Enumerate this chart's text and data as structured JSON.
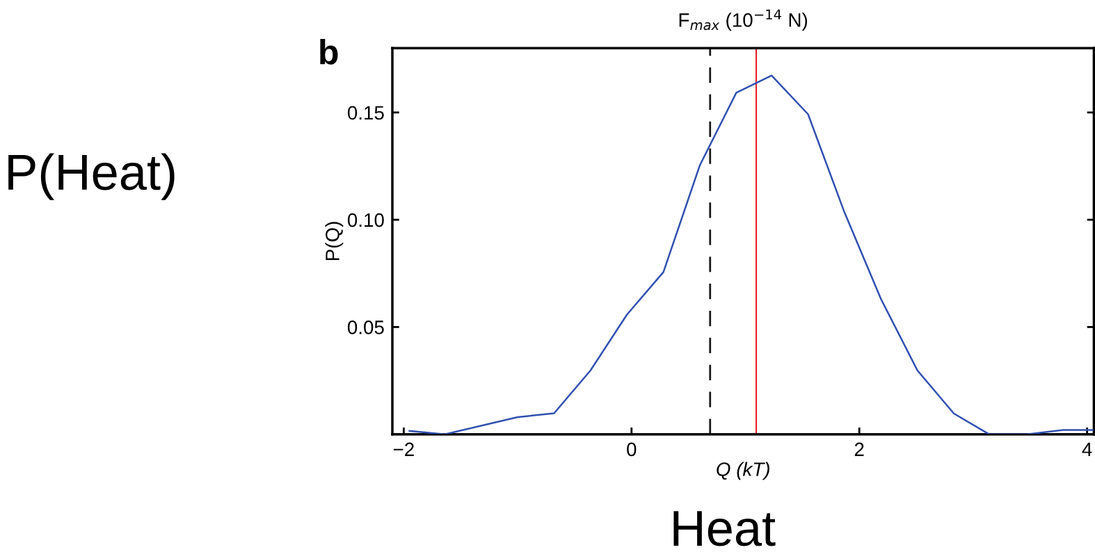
{
  "chart_data": {
    "type": "line",
    "xlabel": "Q (kT)",
    "ylabel": "P(Q)",
    "x2label": "F$_{max}$ (10$^{−14}$ N)",
    "x": [
      -1.95,
      -1.64,
      -1.0,
      -0.68,
      -0.36,
      -0.04,
      0.28,
      0.6,
      0.92,
      1.23,
      1.55,
      1.87,
      2.19,
      2.51,
      2.83,
      3.14,
      3.47,
      3.79,
      4.06
    ],
    "series": [
      {
        "color": "#3050b0",
        "values": [
          0.0016,
          0.0,
          0.008,
          0.0098,
          0.0298,
          0.0558,
          0.0756,
          0.1254,
          0.1592,
          0.1672,
          0.1492,
          0.1034,
          0.0631,
          0.0298,
          0.0097,
          0.0,
          0.0,
          0.002,
          0.002
        ]
      }
    ],
    "xlim": [
      -2.1,
      4.06
    ],
    "xticks": [
      -2,
      0,
      2,
      4
    ],
    "ylim": [
      0,
      0.18
    ],
    "yticks": [
      {
        "value": 0.05,
        "label": "0.05"
      },
      {
        "value": 0.1,
        "label": "0.10"
      },
      {
        "value": 0.15,
        "label": "0.15"
      }
    ],
    "ref_lines": [
      {
        "axis": "x",
        "value": 0.69,
        "color": "#1a1a1a",
        "line_style": "dashed"
      },
      {
        "axis": "x",
        "value": 1.095,
        "color": "#e8202a",
        "line_style": "solid"
      }
    ],
    "grid": false,
    "marker": "none",
    "line_style": "solid",
    "annotations": [
      "b",
      "P(Heat)",
      "Heat"
    ]
  }
}
